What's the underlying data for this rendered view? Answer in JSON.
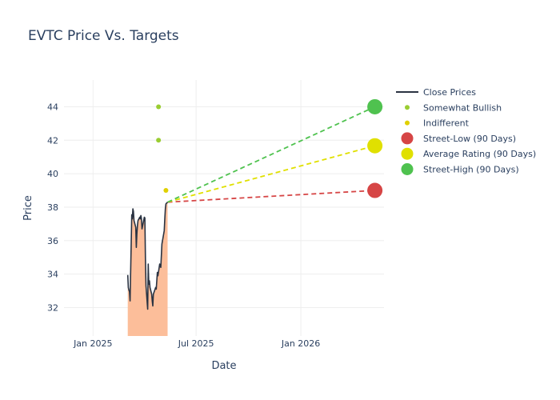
{
  "chart_data": {
    "type": "line",
    "title": "EVTC Price Vs. Targets",
    "xlabel": "Date",
    "ylabel": "Price",
    "x_range": [
      "2024-11-11",
      "2026-05-27"
    ],
    "ylim": [
      30.3,
      45.6
    ],
    "x_ticks": [
      {
        "date": "2025-01-01",
        "label": "Jan 2025"
      },
      {
        "date": "2025-07-01",
        "label": "Jul 2025"
      },
      {
        "date": "2026-01-01",
        "label": "Jan 2026"
      }
    ],
    "y_ticks": [
      32,
      34,
      36,
      38,
      40,
      42,
      44
    ],
    "grid": true,
    "legend_position": "right",
    "close_prices": {
      "name": "Close Prices",
      "color": "#2a3342",
      "fill_color": "#fcbe9a",
      "points": [
        [
          "2025-03-03",
          33.95
        ],
        [
          "2025-03-04",
          33.2
        ],
        [
          "2025-03-05",
          33.05
        ],
        [
          "2025-03-06",
          32.95
        ],
        [
          "2025-03-07",
          32.4
        ],
        [
          "2025-03-10",
          37.55
        ],
        [
          "2025-03-11",
          37.3
        ],
        [
          "2025-03-12",
          37.9
        ],
        [
          "2025-03-13",
          37.75
        ],
        [
          "2025-03-14",
          37.2
        ],
        [
          "2025-03-17",
          36.8
        ],
        [
          "2025-03-18",
          35.6
        ],
        [
          "2025-03-19",
          36.4
        ],
        [
          "2025-03-20",
          36.9
        ],
        [
          "2025-03-21",
          37.2
        ],
        [
          "2025-03-24",
          37.4
        ],
        [
          "2025-03-25",
          37.3
        ],
        [
          "2025-03-26",
          37.5
        ],
        [
          "2025-03-27",
          37.3
        ],
        [
          "2025-03-28",
          36.7
        ],
        [
          "2025-03-31",
          37.2
        ],
        [
          "2025-04-01",
          37.4
        ],
        [
          "2025-04-02",
          37.35
        ],
        [
          "2025-04-03",
          34.9
        ],
        [
          "2025-04-04",
          33.3
        ],
        [
          "2025-04-07",
          31.9
        ],
        [
          "2025-04-08",
          34.6
        ],
        [
          "2025-04-09",
          33.4
        ],
        [
          "2025-04-10",
          33.6
        ],
        [
          "2025-04-11",
          33.2
        ],
        [
          "2025-04-14",
          32.8
        ],
        [
          "2025-04-15",
          32.4
        ],
        [
          "2025-04-16",
          32.1
        ],
        [
          "2025-04-17",
          32.8
        ],
        [
          "2025-04-21",
          33.2
        ],
        [
          "2025-04-22",
          33.1
        ],
        [
          "2025-04-23",
          33.6
        ],
        [
          "2025-04-24",
          34.1
        ],
        [
          "2025-04-25",
          33.9
        ],
        [
          "2025-04-28",
          34.6
        ],
        [
          "2025-04-29",
          34.5
        ],
        [
          "2025-04-30",
          34.4
        ],
        [
          "2025-05-01",
          35.1
        ],
        [
          "2025-05-02",
          35.8
        ],
        [
          "2025-05-05",
          36.4
        ],
        [
          "2025-05-06",
          36.6
        ],
        [
          "2025-05-07",
          37.3
        ],
        [
          "2025-05-08",
          37.9
        ],
        [
          "2025-05-09",
          38.2
        ],
        [
          "2025-05-12",
          38.3
        ]
      ]
    },
    "analyst_ratings": [
      {
        "name": "Somewhat Bullish",
        "color": "#9acd32",
        "points": [
          [
            "2025-04-26",
            44
          ],
          [
            "2025-04-26",
            42
          ]
        ]
      },
      {
        "name": "Indifferent",
        "color": "#e0d000",
        "points": [
          [
            "2025-05-09",
            39
          ]
        ]
      }
    ],
    "targets": {
      "start": [
        "2025-05-12",
        38.3
      ],
      "end_date": "2026-05-11",
      "series": [
        {
          "name": "Street-Low (90 Days)",
          "color": "#d64545",
          "value": 39
        },
        {
          "name": "Average Rating (90 Days)",
          "color": "#e0e000",
          "value": 41.67
        },
        {
          "name": "Street-High (90 Days)",
          "color": "#4fc24f",
          "value": 44
        }
      ]
    }
  }
}
